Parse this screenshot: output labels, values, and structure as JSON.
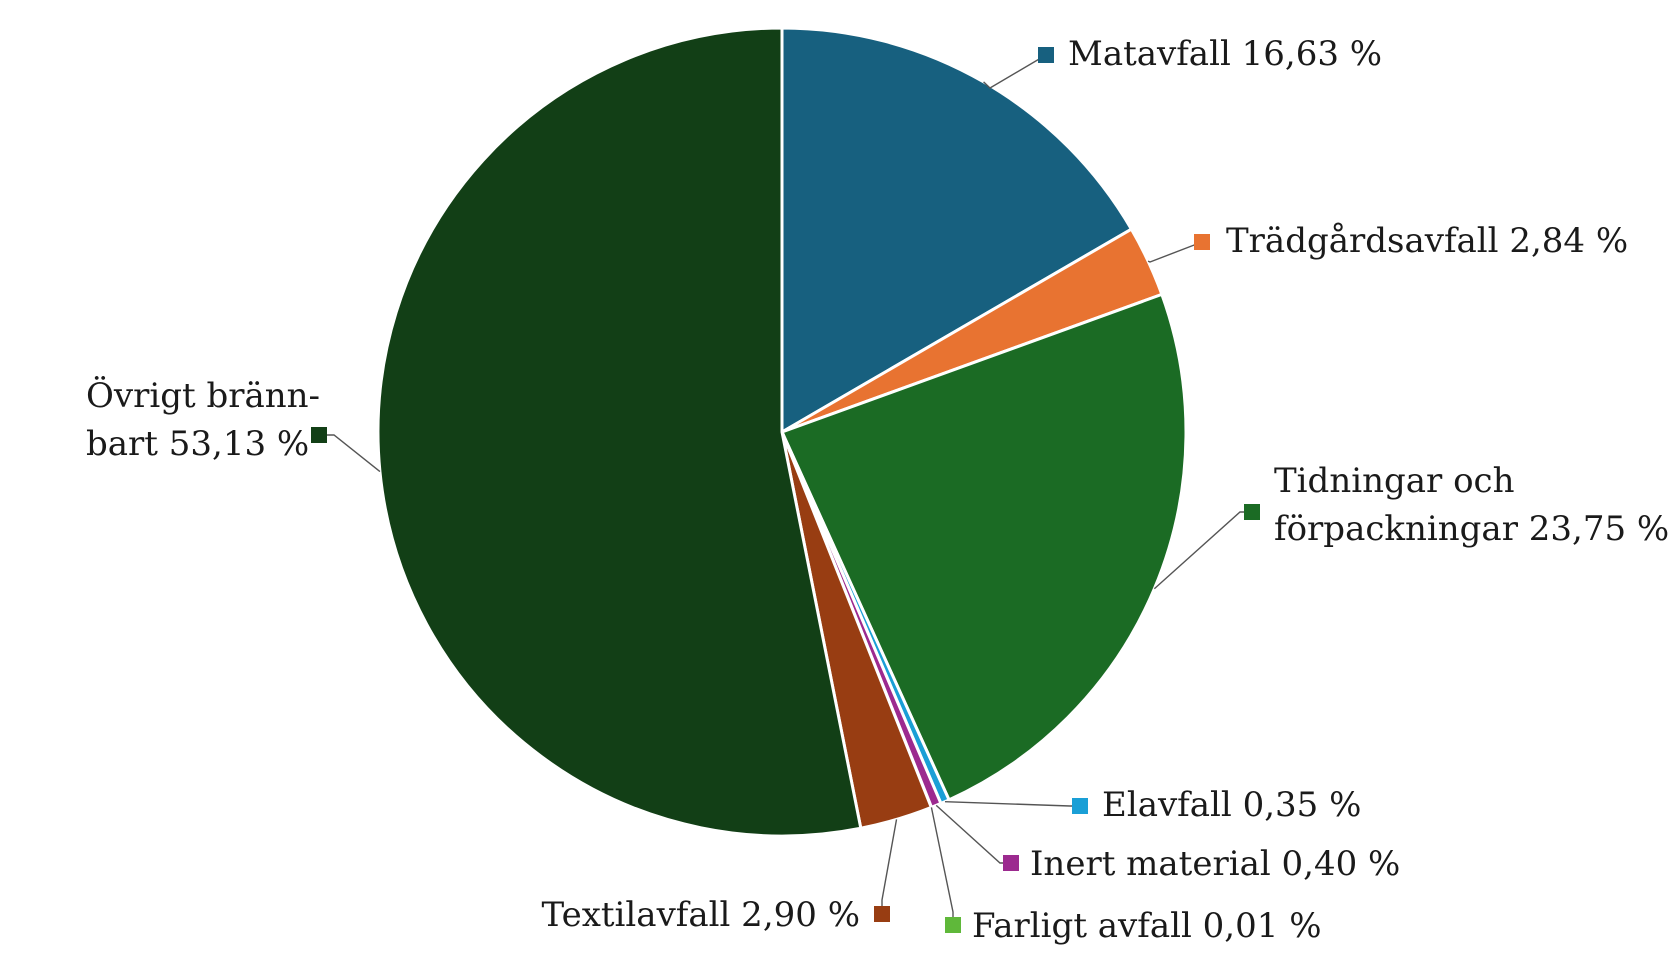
{
  "chart_data": {
    "type": "pie",
    "title": "",
    "unit": "%",
    "slices": [
      {
        "name": "Matavfall",
        "value": 16.63,
        "value_label": "16,63 %",
        "color": "#17607f",
        "label_lines": [
          "Matavfall 16,63 %"
        ]
      },
      {
        "name": "Trädgårdsavfall",
        "value": 2.84,
        "value_label": "2,84 %",
        "color": "#e87331",
        "label_lines": [
          "Trädgårdsavfall 2,84 %"
        ]
      },
      {
        "name": "Tidningar och förpackningar",
        "value": 23.75,
        "value_label": "23,75 %",
        "color": "#1b6b24",
        "label_lines": [
          "Tidningar och",
          "förpackningar 23,75 %"
        ]
      },
      {
        "name": "Elavfall",
        "value": 0.35,
        "value_label": "0,35 %",
        "color": "#1a9fd6",
        "label_lines": [
          "Elavfall 0,35 %"
        ]
      },
      {
        "name": "Inert material",
        "value": 0.4,
        "value_label": "0,40 %",
        "color": "#9c2a8f",
        "label_lines": [
          "Inert material 0,40 %"
        ]
      },
      {
        "name": "Farligt avfall",
        "value": 0.01,
        "value_label": "0,01 %",
        "color": "#5fb83a",
        "label_lines": [
          "Farligt avfall 0,01 %"
        ]
      },
      {
        "name": "Textilavfall",
        "value": 2.9,
        "value_label": "2,90 %",
        "color": "#983d12",
        "label_lines": [
          "Textilavfall 2,90 %"
        ]
      },
      {
        "name": "Övrigt brännbart",
        "value": 53.13,
        "value_label": "53,13 %",
        "color": "#123f16",
        "label_lines": [
          "Övrigt bränn-",
          "bart 53,13 %"
        ]
      }
    ],
    "start_angle": "12 o'clock",
    "direction": "clockwise",
    "legend": "none",
    "data_labels": "outside with leader lines"
  }
}
